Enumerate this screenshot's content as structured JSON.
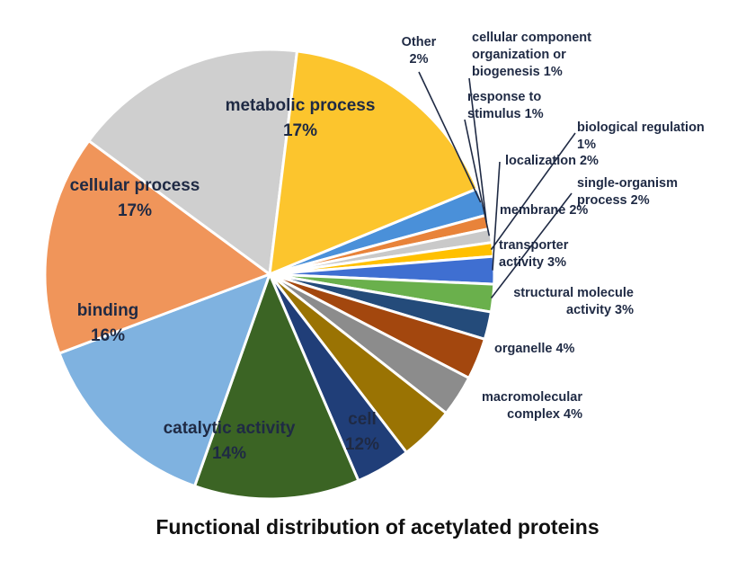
{
  "chart_data": {
    "type": "pie",
    "title": "Functional distribution of acetylated proteins",
    "slices": [
      {
        "key": "other",
        "label": "Other\n2%",
        "value": 2,
        "color": "#4a90d9"
      },
      {
        "key": "cellular_component",
        "label": "cellular component\norganization or\nbiogenesis 1%",
        "value": 1,
        "color": "#e8833a"
      },
      {
        "key": "response_to_stimulus",
        "label": "response to\nstimulus 1%",
        "value": 1,
        "color": "#c9c9c9"
      },
      {
        "key": "biological_regulation",
        "label": "biological regulation\n1%",
        "value": 1,
        "color": "#ffc000"
      },
      {
        "key": "localization",
        "label": "localization 2%",
        "value": 2,
        "color": "#3f6fd1"
      },
      {
        "key": "single_organism_process",
        "label": "single-organism\nprocess 2%",
        "value": 2,
        "color": "#6ab04c"
      },
      {
        "key": "membrane",
        "label": "membrane 2%",
        "value": 2,
        "color": "#244b7a"
      },
      {
        "key": "transporter_activity",
        "label": "transporter\nactivity 3%",
        "value": 3,
        "color": "#a3470e"
      },
      {
        "key": "structural_molecule_activity",
        "label": "structural molecule\nactivity 3%",
        "value": 3,
        "color": "#8c8c8c"
      },
      {
        "key": "organelle",
        "label": "organelle 4%",
        "value": 4,
        "color": "#9a7303"
      },
      {
        "key": "macromolecular_complex",
        "label": "macromolecular\ncomplex 4%",
        "value": 4,
        "color": "#203e78"
      },
      {
        "key": "cell",
        "label": "cell\n12%",
        "value": 12,
        "color": "#3b6424"
      },
      {
        "key": "catalytic_activity",
        "label": "catalytic activity\n14%",
        "value": 14,
        "color": "#7fb2e0"
      },
      {
        "key": "binding",
        "label": "binding\n16%",
        "value": 16,
        "color": "#f0955a"
      },
      {
        "key": "cellular_process",
        "label": "cellular process\n17%",
        "value": 17,
        "color": "#cfcfcf"
      },
      {
        "key": "metabolic_process",
        "label": "metabolic process\n17%",
        "value": 17,
        "color": "#fcc52d"
      }
    ]
  }
}
